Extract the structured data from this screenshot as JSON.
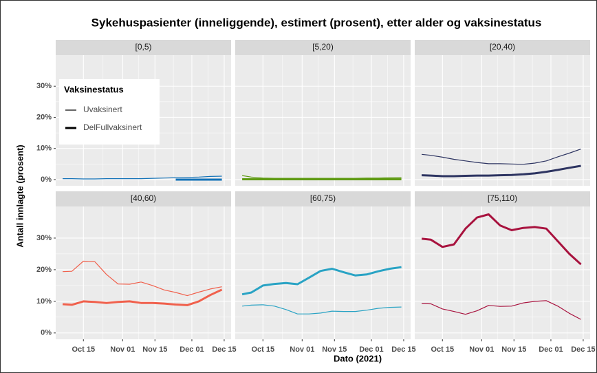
{
  "chart_data": {
    "type": "line",
    "title": "Sykehuspasienter (inneliggende), estimert (prosent), etter alder og vaksinestatus",
    "x_label": "Dato (2021)",
    "y_label": "Antall innlagte (prosent)",
    "legend_title": "Vaksinestatus",
    "grid": true,
    "xlim": [
      "2021-10-03",
      "2021-12-18"
    ],
    "xticks": [
      {
        "value": "2021-10-15",
        "label": "Oct 15"
      },
      {
        "value": "2021-11-01",
        "label": "Nov 01"
      },
      {
        "value": "2021-11-15",
        "label": "Nov 15"
      },
      {
        "value": "2021-12-01",
        "label": "Dec 01"
      },
      {
        "value": "2021-12-15",
        "label": "Dec 15"
      }
    ],
    "ylim": [
      -2,
      40
    ],
    "yticks": [
      {
        "value": 0,
        "label": "0%"
      },
      {
        "value": 10,
        "label": "10%"
      },
      {
        "value": 20,
        "label": "20%"
      },
      {
        "value": 30,
        "label": "30%"
      }
    ],
    "x": [
      "2021-10-06",
      "2021-10-10",
      "2021-10-15",
      "2021-10-20",
      "2021-10-25",
      "2021-10-30",
      "2021-11-04",
      "2021-11-09",
      "2021-11-14",
      "2021-11-19",
      "2021-11-24",
      "2021-11-29",
      "2021-12-04",
      "2021-12-09",
      "2021-12-14"
    ],
    "panels": [
      {
        "title": "[0,5)",
        "color": "#1272b8",
        "series": [
          {
            "name": "Uvaksinert",
            "values": [
              0.3,
              0.3,
              0.2,
              0.2,
              0.3,
              0.3,
              0.3,
              0.3,
              0.4,
              0.5,
              0.6,
              0.7,
              0.8,
              1.0,
              1.1
            ]
          },
          {
            "name": "DelFullvaksinert",
            "values": [
              null,
              null,
              null,
              null,
              null,
              null,
              null,
              null,
              null,
              null,
              0.0,
              0.0,
              0.0,
              0.0,
              0.0
            ]
          }
        ]
      },
      {
        "title": "[5,20)",
        "color": "#5e9a12",
        "series": [
          {
            "name": "Uvaksinert",
            "values": [
              1.3,
              0.8,
              0.5,
              0.4,
              0.4,
              0.4,
              0.4,
              0.4,
              0.4,
              0.4,
              0.4,
              0.5,
              0.5,
              0.6,
              0.7
            ]
          },
          {
            "name": "DelFullvaksinert",
            "values": [
              0.1,
              0.1,
              0.1,
              0.1,
              0.1,
              0.1,
              0.1,
              0.1,
              0.1,
              0.1,
              0.1,
              0.1,
              0.1,
              0.1,
              0.1
            ]
          }
        ]
      },
      {
        "title": "[20,40)",
        "color": "#2d3461",
        "series": [
          {
            "name": "Uvaksinert",
            "values": [
              8.1,
              7.8,
              7.2,
              6.5,
              6.0,
              5.5,
              5.1,
              5.1,
              5.0,
              4.9,
              5.3,
              6.0,
              7.3,
              8.5,
              9.8
            ]
          },
          {
            "name": "DelFullvaksinert",
            "values": [
              1.4,
              1.3,
              1.1,
              1.1,
              1.2,
              1.3,
              1.3,
              1.4,
              1.5,
              1.7,
              2.0,
              2.5,
              3.1,
              3.8,
              4.4
            ]
          }
        ]
      },
      {
        "title": "[40,60)",
        "color": "#f0604c",
        "series": [
          {
            "name": "Uvaksinert",
            "values": [
              19.4,
              19.5,
              22.7,
              22.5,
              18.5,
              15.5,
              15.4,
              16.1,
              15.0,
              13.6,
              12.8,
              11.8,
              12.9,
              13.9,
              14.6
            ]
          },
          {
            "name": "DelFullvaksinert",
            "values": [
              9.1,
              8.9,
              10.0,
              9.8,
              9.5,
              9.8,
              10.0,
              9.5,
              9.5,
              9.3,
              9.0,
              8.8,
              10.0,
              12.0,
              13.7
            ]
          }
        ]
      },
      {
        "title": "[60,75)",
        "color": "#29a3c4",
        "series": [
          {
            "name": "Uvaksinert",
            "values": [
              8.5,
              8.8,
              8.9,
              8.5,
              7.4,
              6.0,
              6.0,
              6.3,
              6.9,
              6.8,
              6.8,
              7.2,
              7.8,
              8.1,
              8.2
            ]
          },
          {
            "name": "DelFullvaksinert",
            "values": [
              12.2,
              12.8,
              15.0,
              15.5,
              15.8,
              15.4,
              17.5,
              19.6,
              20.3,
              19.2,
              18.2,
              18.5,
              19.5,
              20.3,
              20.8
            ]
          }
        ]
      },
      {
        "title": "[75,110)",
        "color": "#a8123e",
        "series": [
          {
            "name": "Uvaksinert",
            "values": [
              9.3,
              9.2,
              7.6,
              6.8,
              5.9,
              7.0,
              8.7,
              8.4,
              8.5,
              9.5,
              10.0,
              10.2,
              8.5,
              6.2,
              4.3
            ]
          },
          {
            "name": "DelFullvaksinert",
            "values": [
              29.8,
              29.5,
              27.2,
              28.0,
              33.0,
              36.5,
              37.5,
              34.0,
              32.5,
              33.2,
              33.5,
              33.0,
              29.0,
              25.0,
              21.7
            ]
          }
        ]
      }
    ]
  }
}
